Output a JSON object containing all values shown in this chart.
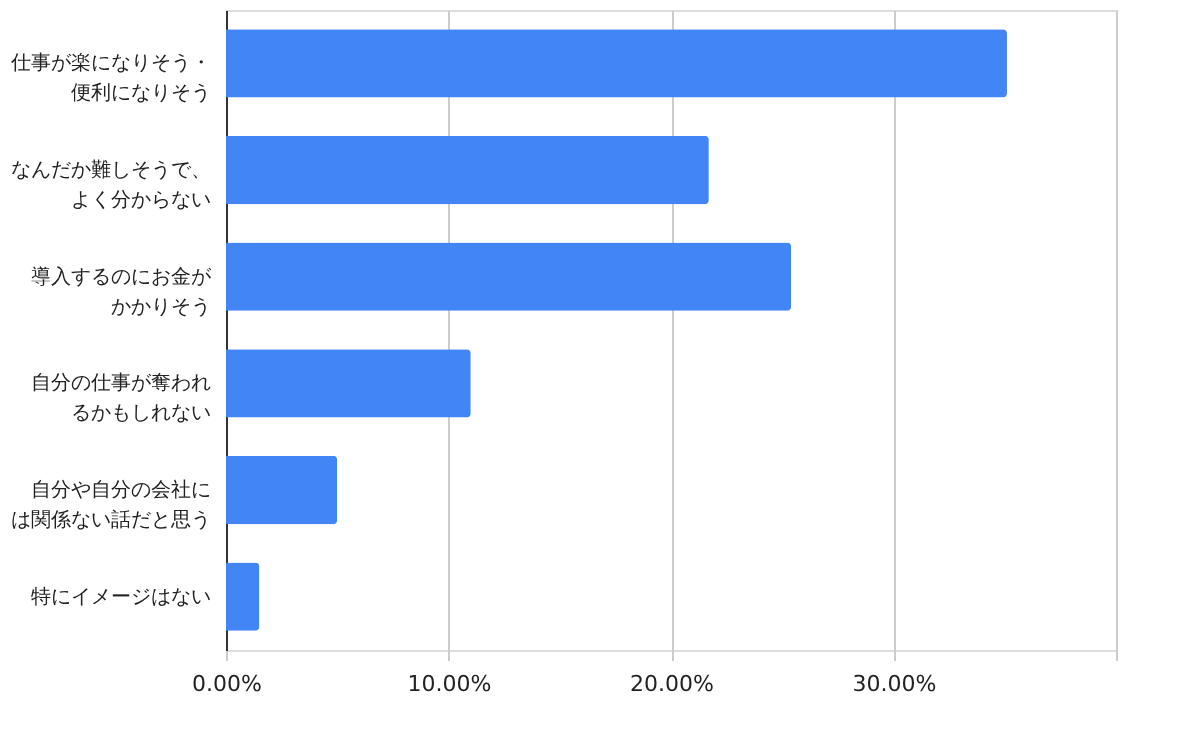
{
  "chart_data": {
    "type": "bar",
    "orientation": "horizontal",
    "categories": [
      "仕事が楽になりそう・便利になりそう",
      "なんだか難しそうで、よく分からない",
      "導入するのにお金がかかりそう",
      "自分の仕事が奪われるかもしれない",
      "自分や自分の会社には関係ない話だと思う",
      "特にイメージはない"
    ],
    "values": [
      35.1,
      21.7,
      25.4,
      11.0,
      5.0,
      1.5
    ],
    "color": "#4285f4",
    "xlim": [
      0,
      40
    ],
    "xticks": [
      {
        "value": 0,
        "label": "0.00%"
      },
      {
        "value": 10,
        "label": "10.00%"
      },
      {
        "value": 20,
        "label": "20.00%"
      },
      {
        "value": 30,
        "label": "30.00%"
      },
      {
        "value": 40,
        "label": null
      }
    ],
    "grid": "x"
  }
}
